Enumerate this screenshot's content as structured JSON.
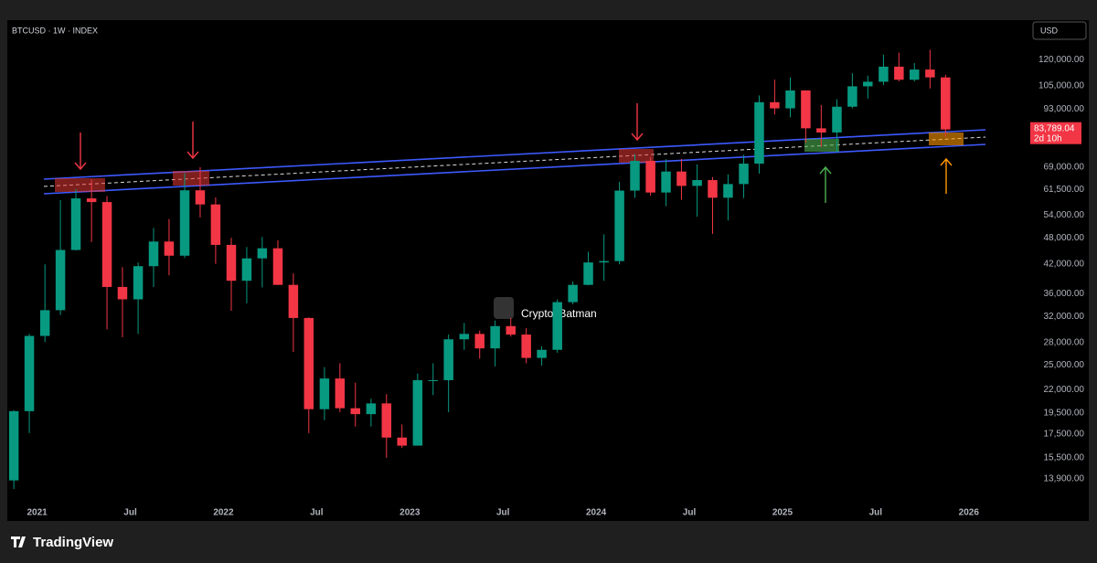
{
  "chart_data": {
    "type": "candlestick",
    "title": "BTCUSD · 1W · INDEX",
    "currency_button": "USD",
    "watermark": "CryptosBatman",
    "brand": "TradingView",
    "log_scale": true,
    "grid": false,
    "up_color": "#089981",
    "down_color": "#f23645",
    "xlim": [
      2020.84,
      2026.32
    ],
    "xticks": [
      {
        "value": 2021,
        "label": "2021"
      },
      {
        "value": 2021.5,
        "label": "Jul"
      },
      {
        "value": 2022,
        "label": "2022"
      },
      {
        "value": 2022.5,
        "label": "Jul"
      },
      {
        "value": 2023,
        "label": "2023"
      },
      {
        "value": 2023.5,
        "label": "Jul"
      },
      {
        "value": 2024,
        "label": "2024"
      },
      {
        "value": 2024.5,
        "label": "Jul"
      },
      {
        "value": 2025,
        "label": "2025"
      },
      {
        "value": 2025.5,
        "label": "Jul"
      },
      {
        "value": 2026,
        "label": "2026"
      }
    ],
    "ylim": [
      12600,
      147000
    ],
    "yticks": [
      {
        "value": 120000,
        "label": "120,000.00"
      },
      {
        "value": 105000,
        "label": "105,000.00"
      },
      {
        "value": 93000,
        "label": "93,000.00"
      },
      {
        "value": 69000,
        "label": "69,000.00"
      },
      {
        "value": 61500,
        "label": "61,500.00"
      },
      {
        "value": 54000,
        "label": "54,000.00"
      },
      {
        "value": 48000,
        "label": "48,000.00"
      },
      {
        "value": 42000,
        "label": "42,000.00"
      },
      {
        "value": 36000,
        "label": "36,000.00"
      },
      {
        "value": 32000,
        "label": "32,000.00"
      },
      {
        "value": 28000,
        "label": "28,000.00"
      },
      {
        "value": 25000,
        "label": "25,000.00"
      },
      {
        "value": 22000,
        "label": "22,000.00"
      },
      {
        "value": 19500,
        "label": "19,500.00"
      },
      {
        "value": 17500,
        "label": "17,500.00"
      },
      {
        "value": 15500,
        "label": "15,500.00"
      },
      {
        "value": 13900,
        "label": "13,900.00"
      }
    ],
    "last_price": {
      "value": 83789.04,
      "label": "83,789.04"
    },
    "countdown": "2d 10h",
    "x": [
      2020.875,
      2020.958,
      2021.042,
      2021.125,
      2021.208,
      2021.292,
      2021.375,
      2021.458,
      2021.542,
      2021.625,
      2021.708,
      2021.792,
      2021.875,
      2021.958,
      2022.042,
      2022.125,
      2022.208,
      2022.292,
      2022.375,
      2022.458,
      2022.542,
      2022.625,
      2022.708,
      2022.792,
      2022.875,
      2022.958,
      2023.042,
      2023.125,
      2023.208,
      2023.292,
      2023.375,
      2023.458,
      2023.542,
      2023.625,
      2023.708,
      2023.792,
      2023.875,
      2023.958,
      2024.042,
      2024.125,
      2024.208,
      2024.292,
      2024.375,
      2024.458,
      2024.542,
      2024.625,
      2024.708,
      2024.792,
      2024.875,
      2024.958,
      2025.042,
      2025.125,
      2025.208,
      2025.292,
      2025.375,
      2025.458,
      2025.542,
      2025.625,
      2025.708,
      2025.792,
      2025.875
    ],
    "open": [
      13800,
      19700,
      29000,
      33100,
      45100,
      58800,
      57700,
      37300,
      35000,
      41500,
      47100,
      43800,
      61300,
      57000,
      46300,
      38500,
      43200,
      45500,
      37700,
      31800,
      19900,
      23300,
      20000,
      19400,
      20500,
      17200,
      16500,
      23100,
      23100,
      28500,
      29300,
      27200,
      30500,
      29200,
      25900,
      27000,
      34500,
      37700,
      42300,
      42600,
      61200,
      71300,
      60600,
      67500,
      62700,
      64600,
      59000,
      63300,
      70300,
      96400,
      93400,
      102400,
      84300,
      82500,
      94200,
      104600,
      107100,
      115700,
      108200,
      114000,
      109500
    ],
    "high": [
      19800,
      29300,
      41900,
      58300,
      61700,
      64800,
      59500,
      41300,
      42300,
      50500,
      52900,
      67000,
      69000,
      59100,
      48000,
      45800,
      48200,
      47400,
      40000,
      31900,
      24700,
      25200,
      22800,
      21000,
      21500,
      18400,
      23900,
      25200,
      29200,
      31000,
      29800,
      31400,
      31800,
      30200,
      27500,
      35000,
      38400,
      44700,
      48900,
      64000,
      73800,
      72700,
      71900,
      72000,
      70000,
      65600,
      66500,
      73600,
      99800,
      108300,
      109400,
      102500,
      95000,
      97900,
      111900,
      110500,
      123200,
      124400,
      117900,
      126200,
      111000
    ],
    "low": [
      13200,
      17600,
      28100,
      32300,
      45000,
      47000,
      30000,
      28800,
      29300,
      37300,
      39600,
      43300,
      53300,
      42000,
      33000,
      34300,
      37200,
      37700,
      26700,
      17600,
      18800,
      19600,
      18200,
      18200,
      15500,
      16300,
      16500,
      21400,
      19600,
      27000,
      25800,
      24800,
      28900,
      25200,
      24900,
      26600,
      34100,
      37600,
      38500,
      41900,
      59000,
      59600,
      56500,
      58400,
      53500,
      49000,
      52500,
      58900,
      66800,
      90500,
      89200,
      78200,
      76600,
      74500,
      93400,
      98200,
      105300,
      107300,
      107300,
      103500,
      80600
    ],
    "close": [
      19700,
      29000,
      33100,
      45100,
      58800,
      57700,
      37300,
      35000,
      41500,
      47100,
      43800,
      61300,
      57000,
      46300,
      38500,
      43200,
      45500,
      37700,
      31800,
      19900,
      23300,
      20000,
      19400,
      20500,
      17200,
      16500,
      23100,
      23100,
      28500,
      29300,
      27200,
      30500,
      29200,
      25900,
      27000,
      34500,
      37700,
      42300,
      42600,
      61200,
      71300,
      60600,
      67500,
      62700,
      64600,
      59000,
      63300,
      70300,
      96400,
      93400,
      102400,
      84300,
      82500,
      94200,
      104600,
      107100,
      115700,
      108200,
      114000,
      109500,
      83789.04
    ]
  }
}
